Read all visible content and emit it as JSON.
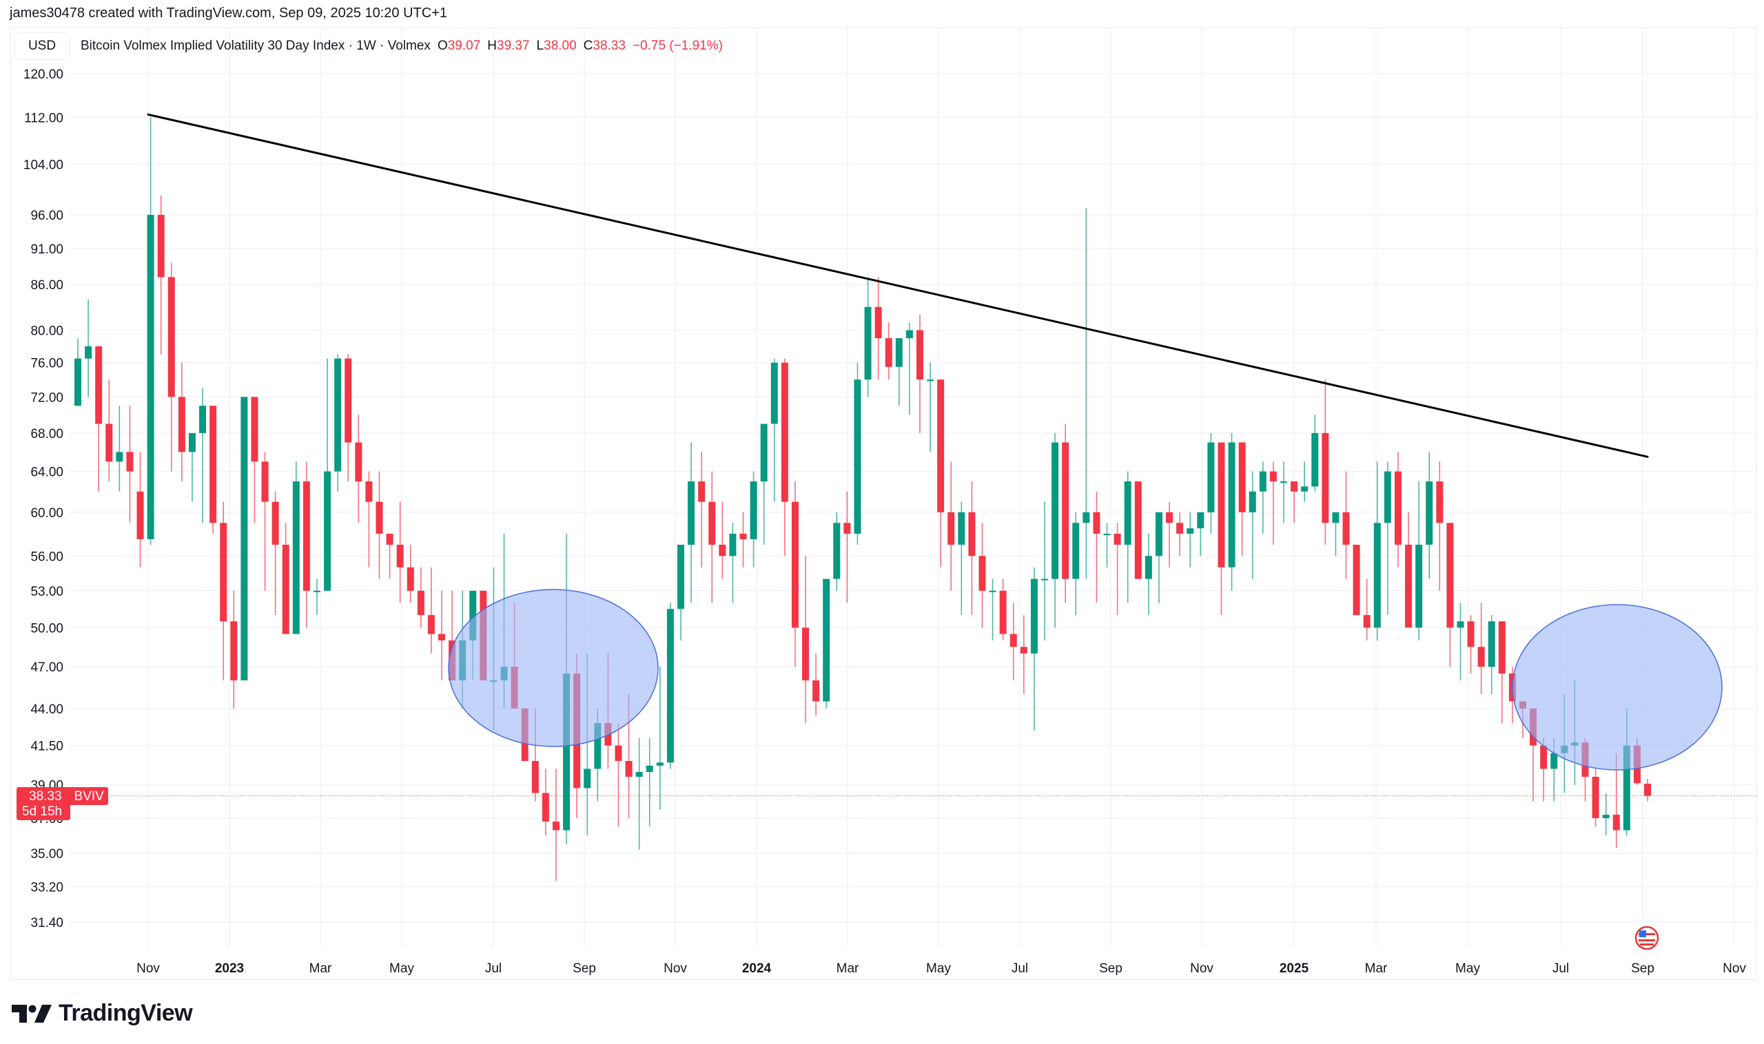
{
  "credit": "james30478 created with TradingView.com, Sep 09, 2025 10:20 UTC+1",
  "legend": {
    "currency": "USD",
    "title": "Bitcoin Volmex Implied Volatility 30 Day Index · 1W · Volmex",
    "o_label": "O",
    "o_value": "39.07",
    "h_label": "H",
    "h_value": "39.37",
    "l_label": "L",
    "l_value": "38.00",
    "c_label": "C",
    "c_value": "38.33",
    "change": "−0.75 (−1.91%)"
  },
  "price_tag": {
    "value": "38.33",
    "symbol": "BVIV",
    "countdown": "5d 15h"
  },
  "brand": "TradingView",
  "colors": {
    "up": "#089981",
    "down": "#f23645",
    "grid": "#f0f3fa",
    "trendline": "#000000",
    "ellipse_fill": "#9db5f7",
    "ellipse_stroke": "#4a6fdc"
  },
  "chart_data": {
    "type": "candlestick",
    "title": "Bitcoin Volmex Implied Volatility 30 Day Index · 1W · Volmex",
    "scale": "log",
    "ylim": [
      29.5,
      124
    ],
    "y_ticks": [
      120.0,
      112.0,
      104.0,
      96.0,
      91.0,
      86.0,
      80.0,
      76.0,
      72.0,
      68.0,
      64.0,
      60.0,
      56.0,
      53.0,
      50.0,
      47.0,
      44.0,
      41.5,
      39.0,
      37.0,
      35.0,
      33.2,
      31.4
    ],
    "y_tick_labels": [
      "120.00",
      "112.00",
      "104.00",
      "96.00",
      "91.00",
      "86.00",
      "80.00",
      "76.00",
      "72.00",
      "68.00",
      "64.00",
      "60.00",
      "56.00",
      "53.00",
      "50.00",
      "47.00",
      "44.00",
      "41.50",
      "39.00",
      "37.00",
      "35.00",
      "33.20",
      "31.40"
    ],
    "x_ticks": [
      {
        "label": "Nov",
        "x": 215,
        "year": false
      },
      {
        "label": "2023",
        "x": 333,
        "year": true
      },
      {
        "label": "Mar",
        "x": 465,
        "year": false
      },
      {
        "label": "May",
        "x": 583,
        "year": false
      },
      {
        "label": "Jul",
        "x": 716,
        "year": false
      },
      {
        "label": "Sep",
        "x": 848,
        "year": false
      },
      {
        "label": "Nov",
        "x": 980,
        "year": false
      },
      {
        "label": "2024",
        "x": 1098,
        "year": true
      },
      {
        "label": "Mar",
        "x": 1230,
        "year": false
      },
      {
        "label": "May",
        "x": 1362,
        "year": false
      },
      {
        "label": "Jul",
        "x": 1480,
        "year": false
      },
      {
        "label": "Sep",
        "x": 1612,
        "year": false
      },
      {
        "label": "Nov",
        "x": 1744,
        "year": false
      },
      {
        "label": "2025",
        "x": 1878,
        "year": true
      },
      {
        "label": "Mar",
        "x": 1997,
        "year": false
      },
      {
        "label": "May",
        "x": 2130,
        "year": false
      },
      {
        "label": "Jul",
        "x": 2265,
        "year": false
      },
      {
        "label": "Sep",
        "x": 2384,
        "year": false
      },
      {
        "label": "Nov",
        "x": 2517,
        "year": false
      }
    ],
    "candles_ohlc": [
      [
        71,
        79,
        71,
        76.5
      ],
      [
        76.5,
        84,
        72,
        78
      ],
      [
        78,
        78,
        62,
        69
      ],
      [
        69,
        74,
        63,
        65
      ],
      [
        65,
        71,
        62,
        66
      ],
      [
        66,
        71,
        59,
        64
      ],
      [
        62,
        66,
        55,
        57.5
      ],
      [
        57.5,
        112,
        57,
        96
      ],
      [
        96,
        99,
        77,
        87
      ],
      [
        87,
        89,
        64,
        72
      ],
      [
        72,
        76,
        63,
        66
      ],
      [
        66,
        68,
        61,
        68
      ],
      [
        68,
        73,
        59,
        71
      ],
      [
        71,
        71,
        58,
        59
      ],
      [
        59,
        61,
        46,
        50.5
      ],
      [
        50.5,
        53,
        44,
        46
      ],
      [
        46,
        72,
        46,
        72
      ],
      [
        72,
        72,
        59,
        65
      ],
      [
        65,
        66,
        53,
        61
      ],
      [
        61,
        62,
        51,
        57
      ],
      [
        57,
        59,
        49.5,
        49.5
      ],
      [
        49.5,
        65,
        49.5,
        63
      ],
      [
        63,
        65,
        50,
        53
      ],
      [
        53,
        54,
        51,
        53
      ],
      [
        53,
        76.5,
        53,
        64
      ],
      [
        64,
        77,
        62,
        76.5
      ],
      [
        76.5,
        77,
        63,
        67
      ],
      [
        67,
        70,
        59,
        63
      ],
      [
        63,
        64,
        55,
        61
      ],
      [
        61,
        64,
        54,
        58
      ],
      [
        58,
        58,
        54,
        57
      ],
      [
        57,
        61,
        52,
        55
      ],
      [
        55,
        57,
        52,
        53
      ],
      [
        53,
        55,
        50,
        51
      ],
      [
        51,
        55,
        48,
        49.5
      ],
      [
        49.5,
        53,
        46,
        49
      ],
      [
        49,
        53,
        46,
        46
      ],
      [
        46,
        53,
        44,
        49
      ],
      [
        49,
        53,
        46,
        53
      ],
      [
        53,
        53,
        46,
        46
      ],
      [
        46,
        55,
        42.5,
        46
      ],
      [
        46,
        58,
        44,
        47
      ],
      [
        47,
        52,
        44,
        44
      ],
      [
        44,
        44,
        42,
        40.5
      ],
      [
        40.5,
        44,
        38,
        38.5
      ],
      [
        38.5,
        40,
        36,
        36.8
      ],
      [
        36.8,
        40,
        33.5,
        36.3
      ],
      [
        36.3,
        58,
        35.5,
        46.5
      ],
      [
        46.5,
        48,
        37,
        38.8
      ],
      [
        38.8,
        48,
        36,
        40
      ],
      [
        40,
        44,
        38,
        43
      ],
      [
        43,
        48,
        40,
        41.5
      ],
      [
        41.5,
        43,
        36.5,
        40.5
      ],
      [
        40.5,
        45,
        37,
        39.5
      ],
      [
        39.5,
        42,
        35.2,
        39.8
      ],
      [
        39.8,
        42,
        36.5,
        40.2
      ],
      [
        40.2,
        47,
        37.5,
        40.4
      ],
      [
        40.4,
        52,
        40,
        51.5
      ],
      [
        51.5,
        57,
        49,
        57
      ],
      [
        57,
        67,
        52,
        63
      ],
      [
        63,
        66,
        55,
        61
      ],
      [
        61,
        64,
        52,
        57
      ],
      [
        57,
        61,
        54,
        56
      ],
      [
        56,
        59,
        52,
        58
      ],
      [
        58,
        60,
        55,
        57.5
      ],
      [
        57.5,
        64,
        55,
        63
      ],
      [
        63,
        68,
        57,
        69
      ],
      [
        69,
        76.5,
        61,
        76
      ],
      [
        76,
        76.5,
        56,
        61
      ],
      [
        61,
        63,
        47,
        50
      ],
      [
        50,
        56,
        43,
        46
      ],
      [
        46,
        48,
        43.5,
        44.5
      ],
      [
        44.5,
        54,
        44,
        54
      ],
      [
        54,
        60,
        53,
        59
      ],
      [
        59,
        62,
        52,
        58
      ],
      [
        58,
        76,
        57,
        74
      ],
      [
        74,
        87,
        72,
        83
      ],
      [
        83,
        87,
        74,
        79
      ],
      [
        79,
        81,
        74,
        75.5
      ],
      [
        75.5,
        79,
        71,
        79
      ],
      [
        79,
        81,
        70,
        80
      ],
      [
        80,
        82,
        68,
        74
      ],
      [
        74,
        76,
        66,
        74
      ],
      [
        74,
        74,
        55,
        60
      ],
      [
        60,
        65,
        53,
        57
      ],
      [
        57,
        61,
        51,
        60
      ],
      [
        60,
        63,
        51,
        56
      ],
      [
        56,
        59,
        50,
        53
      ],
      [
        53,
        54,
        49,
        53
      ],
      [
        53,
        54,
        49,
        49.5
      ],
      [
        49.5,
        52,
        46,
        48.5
      ],
      [
        48.5,
        51,
        45,
        48
      ],
      [
        48,
        55,
        42.5,
        54
      ],
      [
        54,
        61,
        49,
        54
      ],
      [
        54,
        68,
        50,
        67
      ],
      [
        67,
        69,
        52,
        54
      ],
      [
        54,
        60,
        51,
        59
      ],
      [
        59,
        97,
        54,
        60
      ],
      [
        60,
        62,
        52,
        58
      ],
      [
        58,
        59,
        55,
        58
      ],
      [
        58,
        59,
        51,
        57
      ],
      [
        57,
        64,
        52,
        63
      ],
      [
        63,
        63,
        54,
        54
      ],
      [
        54,
        58,
        51,
        56
      ],
      [
        56,
        60,
        52,
        60
      ],
      [
        60,
        61,
        55,
        59
      ],
      [
        59,
        60,
        56,
        58
      ],
      [
        58,
        60,
        55,
        58.5
      ],
      [
        58.5,
        60,
        56,
        60
      ],
      [
        60,
        68,
        58,
        67
      ],
      [
        67,
        67,
        51,
        55
      ],
      [
        55,
        68,
        53,
        67
      ],
      [
        67,
        67,
        56,
        60
      ],
      [
        60,
        64,
        54,
        62
      ],
      [
        62,
        65,
        58,
        64
      ],
      [
        64,
        65,
        57,
        63
      ],
      [
        63,
        65,
        59,
        63
      ],
      [
        63,
        63,
        59,
        62
      ],
      [
        62,
        65,
        61,
        62.5
      ],
      [
        62.5,
        70,
        62,
        68
      ],
      [
        68,
        74,
        57,
        59
      ],
      [
        59,
        60,
        56,
        60
      ],
      [
        60,
        64,
        54,
        57
      ],
      [
        57,
        57,
        51,
        51
      ],
      [
        51,
        54,
        49,
        50
      ],
      [
        50,
        65,
        49,
        59
      ],
      [
        59,
        65,
        51,
        64
      ],
      [
        64,
        66,
        55,
        57
      ],
      [
        57,
        60,
        50,
        50
      ],
      [
        50,
        63,
        49,
        57
      ],
      [
        57,
        66,
        54,
        63
      ],
      [
        63,
        65,
        53,
        59
      ],
      [
        59,
        59,
        47,
        50
      ],
      [
        50,
        52,
        46,
        50.5
      ],
      [
        50.5,
        51,
        46.5,
        48.5
      ],
      [
        48.5,
        52,
        45,
        47
      ],
      [
        47,
        51,
        45,
        50.5
      ],
      [
        50.5,
        50,
        43,
        46.5
      ],
      [
        46.5,
        47,
        43,
        44.5
      ],
      [
        44.5,
        44,
        42,
        44
      ],
      [
        44,
        44,
        38,
        41.5
      ],
      [
        41.5,
        42,
        38,
        40
      ],
      [
        40,
        42,
        38,
        41
      ],
      [
        41,
        45,
        38.5,
        41.5
      ],
      [
        41.5,
        46,
        39,
        41.7
      ],
      [
        41.7,
        42,
        38,
        39.5
      ],
      [
        39.5,
        40,
        36.5,
        37
      ],
      [
        37,
        38.5,
        36,
        37.2
      ],
      [
        37.2,
        41,
        35.3,
        36.3
      ],
      [
        36.3,
        44,
        36,
        41.5
      ],
      [
        41.5,
        42,
        39,
        39.1
      ],
      [
        39.07,
        39.37,
        38.0,
        38.33
      ]
    ],
    "trendline": {
      "from": {
        "x": 215,
        "value": 112.5
      },
      "to": {
        "x": 2391,
        "value": 65.5
      }
    },
    "highlight_ellipses": [
      {
        "cx": 803,
        "cy": 970,
        "rx": 152,
        "ry": 114
      },
      {
        "cx": 2347,
        "cy": 998,
        "rx": 152,
        "ry": 120
      }
    ],
    "last_price": 38.33
  }
}
